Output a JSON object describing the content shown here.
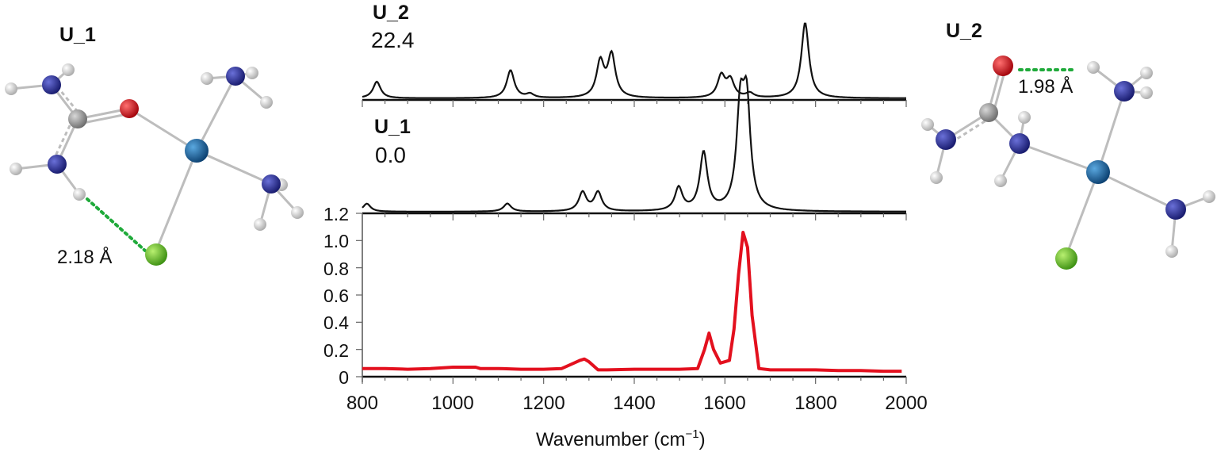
{
  "figure": {
    "left_structure": {
      "title": "U_1",
      "hbond_label": "2.18 Å",
      "hbond_type": "N–H···Cl"
    },
    "right_structure": {
      "title": "U_2",
      "hbond_label": "1.98 Å",
      "hbond_type": "O···H–N"
    },
    "atom_colors": {
      "hydrogen": "#e8e8e8",
      "nitrogen": "#2b2f8f",
      "carbon": "#9a9a9a",
      "oxygen": "#e0101a",
      "metal": "#155f99",
      "chlorine": "#5cc22a",
      "hbond": "#1faa3a"
    }
  },
  "chart_data": [
    {
      "type": "line",
      "title": "U_2",
      "subtitle": "22.4",
      "panel": "top (calculated)",
      "xlabel": "Wavenumber (cm-1)",
      "xlim": [
        800,
        2000
      ],
      "color": "#111111",
      "peaks": [
        {
          "x": 832,
          "height": 0.22
        },
        {
          "x": 1127,
          "height": 0.37
        },
        {
          "x": 1170,
          "height": 0.05
        },
        {
          "x": 1325,
          "height": 0.47
        },
        {
          "x": 1350,
          "height": 0.56
        },
        {
          "x": 1592,
          "height": 0.29
        },
        {
          "x": 1612,
          "height": 0.23
        },
        {
          "x": 1655,
          "height": 0.06
        },
        {
          "x": 1777,
          "height": 1.0
        }
      ]
    },
    {
      "type": "line",
      "title": "U_1",
      "subtitle": "0.0",
      "panel": "middle (calculated)",
      "xlabel": "Wavenumber (cm-1)",
      "xlim": [
        800,
        2000
      ],
      "color": "#111111",
      "peaks": [
        {
          "x": 810,
          "height": 0.08
        },
        {
          "x": 1120,
          "height": 0.08
        },
        {
          "x": 1286,
          "height": 0.19
        },
        {
          "x": 1320,
          "height": 0.19
        },
        {
          "x": 1498,
          "height": 0.23
        },
        {
          "x": 1553,
          "height": 0.58
        },
        {
          "x": 1634,
          "height": 0.95
        },
        {
          "x": 1648,
          "height": 1.0
        }
      ]
    },
    {
      "type": "line",
      "title": "",
      "panel": "bottom (experimental)",
      "xlabel": "Wavenumber (cm-1)",
      "ylabel": "",
      "xlim": [
        800,
        2000
      ],
      "ylim": [
        0,
        1.2
      ],
      "x_ticks": [
        800,
        1000,
        1200,
        1400,
        1600,
        1800,
        2000
      ],
      "y_ticks": [
        0,
        0.2,
        0.4,
        0.6,
        0.8,
        1.0,
        1.2
      ],
      "color": "#e3101e",
      "x": [
        800,
        850,
        900,
        950,
        1000,
        1050,
        1060,
        1100,
        1150,
        1200,
        1240,
        1260,
        1280,
        1290,
        1300,
        1320,
        1340,
        1400,
        1450,
        1500,
        1540,
        1555,
        1565,
        1575,
        1590,
        1610,
        1620,
        1630,
        1640,
        1650,
        1660,
        1675,
        1700,
        1750,
        1800,
        1850,
        1900,
        1950,
        1990
      ],
      "values": [
        0.06,
        0.06,
        0.055,
        0.06,
        0.07,
        0.07,
        0.06,
        0.06,
        0.055,
        0.055,
        0.06,
        0.09,
        0.12,
        0.13,
        0.11,
        0.05,
        0.05,
        0.055,
        0.055,
        0.055,
        0.06,
        0.2,
        0.32,
        0.2,
        0.1,
        0.12,
        0.35,
        0.75,
        1.06,
        0.95,
        0.45,
        0.06,
        0.05,
        0.05,
        0.05,
        0.045,
        0.045,
        0.04,
        0.04
      ]
    }
  ],
  "axis": {
    "xlabel_main": "Wavenumber (cm",
    "xlabel_sup": "−1",
    "xlabel_close": ")",
    "x_tick_labels": [
      "800",
      "1000",
      "1200",
      "1400",
      "1600",
      "1800",
      "2000"
    ],
    "y_tick_labels": [
      "0",
      "0.2",
      "0.4",
      "0.6",
      "0.8",
      "1.0",
      "1.2"
    ]
  }
}
